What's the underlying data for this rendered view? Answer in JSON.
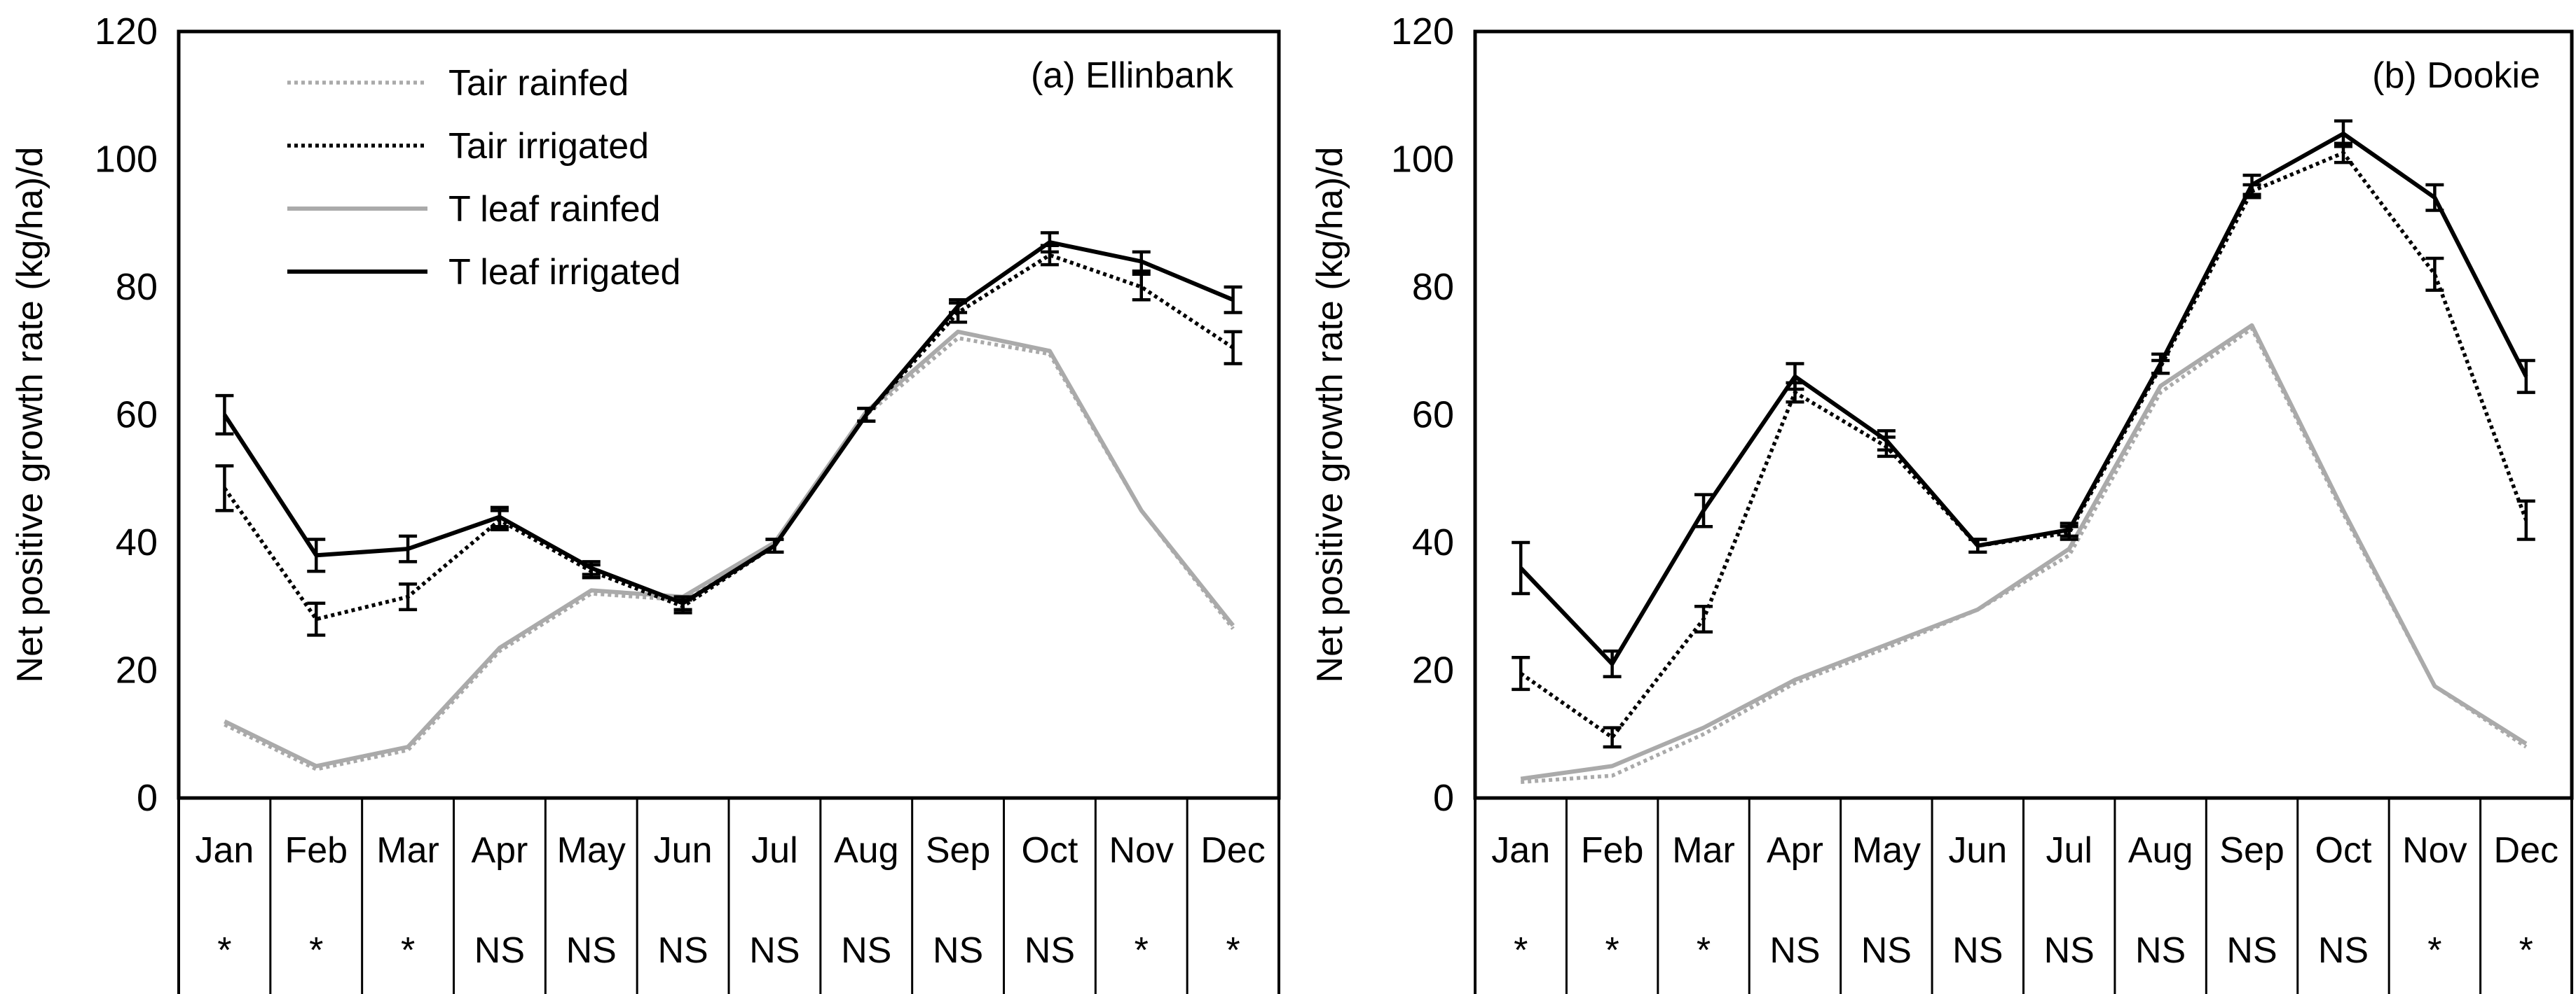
{
  "chart_data": [
    {
      "type": "line",
      "title": "(a) Ellinbank",
      "ylabel": "Net positive growth rate (kg/ha)/d",
      "xlabel": "",
      "ylim": [
        0,
        120
      ],
      "yticks": [
        0,
        20,
        40,
        60,
        80,
        100,
        120
      ],
      "categories": [
        "Jan",
        "Feb",
        "Mar",
        "Apr",
        "May",
        "Jun",
        "Jul",
        "Aug",
        "Sep",
        "Oct",
        "Nov",
        "Dec"
      ],
      "significance": [
        "*",
        "*",
        "*",
        "NS",
        "NS",
        "NS",
        "NS",
        "NS",
        "NS",
        "NS",
        "*",
        "*"
      ],
      "legend_position": "top-left",
      "series": [
        {
          "name": "Tair rainfed",
          "color": "#aaaaaa",
          "style": "dotted",
          "values": [
            11.5,
            4.5,
            7.5,
            23,
            32,
            31,
            40,
            60,
            72,
            69.5,
            45,
            26.5
          ]
        },
        {
          "name": "Tair irrigated",
          "color": "#000000",
          "style": "dotted",
          "values": [
            48.5,
            28,
            31.5,
            43.5,
            35.5,
            30,
            39.5,
            60,
            76,
            85,
            80,
            70.5
          ],
          "errors": [
            3.5,
            2.5,
            2,
            1.5,
            1,
            1,
            1,
            1,
            1.5,
            1.5,
            2,
            2.5
          ]
        },
        {
          "name": "T leaf rainfed",
          "color": "#aaaaaa",
          "style": "solid",
          "values": [
            12,
            5,
            8,
            23.5,
            32.5,
            31.5,
            40,
            60.5,
            73,
            70,
            45,
            27
          ]
        },
        {
          "name": "T leaf irrigated",
          "color": "#000000",
          "style": "solid",
          "values": [
            60,
            38,
            39,
            44,
            36,
            30.5,
            39.5,
            60,
            77,
            87,
            84,
            78
          ],
          "errors": [
            3,
            2.5,
            2,
            1.5,
            1,
            1,
            1,
            1,
            1,
            1.5,
            1.5,
            2
          ]
        }
      ]
    },
    {
      "type": "line",
      "title": "(b) Dookie",
      "ylabel": "Net positive growth rate (kg/ha)/d",
      "xlabel": "",
      "ylim": [
        0,
        120
      ],
      "yticks": [
        0,
        20,
        40,
        60,
        80,
        100,
        120
      ],
      "categories": [
        "Jan",
        "Feb",
        "Mar",
        "Apr",
        "May",
        "Jun",
        "Jul",
        "Aug",
        "Sep",
        "Oct",
        "Nov",
        "Dec"
      ],
      "significance": [
        "*",
        "*",
        "*",
        "NS",
        "NS",
        "NS",
        "NS",
        "NS",
        "NS",
        "NS",
        "*",
        "*"
      ],
      "series": [
        {
          "name": "Tair rainfed",
          "color": "#aaaaaa",
          "style": "dotted",
          "values": [
            2.5,
            3.5,
            10,
            18,
            23.5,
            29.5,
            38,
            63.5,
            73.5,
            44.5,
            17.5,
            8
          ]
        },
        {
          "name": "Tair irrigated",
          "color": "#000000",
          "style": "dotted",
          "values": [
            19.5,
            9.5,
            28,
            63.5,
            55,
            39.5,
            41.5,
            67.5,
            95,
            101,
            82,
            43.5
          ],
          "errors": [
            2.5,
            1.5,
            2,
            1.5,
            1.5,
            1,
            1,
            1,
            1,
            1.5,
            2.5,
            3
          ]
        },
        {
          "name": "T leaf rainfed",
          "color": "#aaaaaa",
          "style": "solid",
          "values": [
            3,
            5,
            11,
            18.5,
            24,
            29.5,
            39,
            64.5,
            74,
            45,
            17.5,
            8.5
          ]
        },
        {
          "name": "T leaf irrigated",
          "color": "#000000",
          "style": "solid",
          "values": [
            36,
            21,
            45,
            66,
            56,
            39.5,
            42,
            68,
            96,
            104,
            94,
            66
          ],
          "errors": [
            4,
            2,
            2.5,
            2,
            1.5,
            1,
            1,
            1.5,
            1.5,
            2,
            2,
            2.5
          ]
        }
      ]
    }
  ]
}
